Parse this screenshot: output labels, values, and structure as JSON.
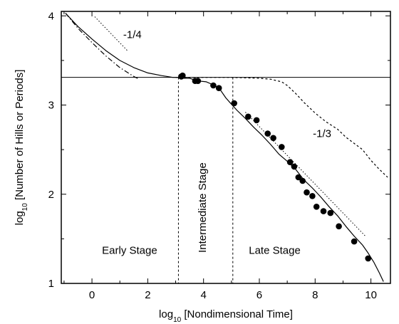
{
  "chart_data": {
    "type": "line",
    "xlabel": {
      "prefix": "log",
      "sub": "10",
      "rest": " [Nondimensional Time]"
    },
    "ylabel": {
      "prefix": "log",
      "sub": "10",
      "rest": " [Number of Hills or Periods]"
    },
    "xlim": [
      -1.1,
      10.7
    ],
    "ylim": [
      1,
      4.05
    ],
    "xticks": [
      0,
      2,
      4,
      6,
      8,
      10
    ],
    "yticks": [
      1,
      2,
      3,
      4
    ],
    "grid": false,
    "series": [
      {
        "style": "solid",
        "x": [
          -0.95,
          -0.5,
          0,
          0.5,
          1,
          1.5,
          2,
          2.5,
          2.9,
          3.1,
          3.3,
          3.5,
          3.8,
          4.1,
          4.4,
          4.6,
          4.8,
          5.0,
          5.2,
          5.5,
          5.8,
          6.1,
          6.4,
          6.7,
          7.0,
          7.3,
          7.6,
          7.9,
          8.2,
          8.5,
          8.8,
          9.1,
          9.4,
          9.7,
          9.9,
          10.1,
          10.3,
          10.45
        ],
        "y": [
          4.03,
          3.88,
          3.74,
          3.61,
          3.5,
          3.42,
          3.36,
          3.33,
          3.31,
          3.31,
          3.3,
          3.3,
          3.27,
          3.26,
          3.22,
          3.17,
          3.08,
          3.01,
          2.94,
          2.85,
          2.75,
          2.66,
          2.56,
          2.45,
          2.37,
          2.28,
          2.16,
          2.07,
          1.97,
          1.86,
          1.76,
          1.64,
          1.53,
          1.43,
          1.34,
          1.24,
          1.12,
          1.02
        ]
      },
      {
        "style": "dashdot",
        "x": [
          -0.95,
          -0.5,
          0,
          0.5,
          1.0,
          1.5,
          1.7
        ],
        "y": [
          4.03,
          3.86,
          3.7,
          3.55,
          3.42,
          3.32,
          3.29
        ]
      },
      {
        "style": "dashed",
        "x": [
          3.0,
          4.0,
          5.0,
          6.0,
          6.4,
          6.8,
          7.0,
          7.3,
          7.6,
          8.0,
          8.4,
          8.8,
          9.1,
          9.4,
          9.7,
          10.0,
          10.3,
          10.6
        ],
        "y": [
          3.31,
          3.31,
          3.31,
          3.3,
          3.29,
          3.26,
          3.22,
          3.13,
          3.03,
          2.91,
          2.81,
          2.73,
          2.64,
          2.57,
          2.5,
          2.38,
          2.28,
          2.19
        ]
      },
      {
        "style": "scatter",
        "x": [
          3.2,
          3.25,
          3.7,
          3.8,
          4.35,
          4.55,
          5.1,
          5.6,
          5.9,
          6.3,
          6.5,
          6.8,
          7.1,
          7.25,
          7.4,
          7.55,
          7.7,
          7.9,
          8.05,
          8.3,
          8.55,
          8.85,
          9.4,
          9.9
        ],
        "y": [
          3.32,
          3.33,
          3.27,
          3.27,
          3.22,
          3.19,
          3.02,
          2.87,
          2.83,
          2.68,
          2.63,
          2.53,
          2.36,
          2.31,
          2.19,
          2.15,
          2.02,
          1.98,
          1.86,
          1.81,
          1.79,
          1.64,
          1.47,
          1.28
        ]
      }
    ],
    "reference_lines": [
      {
        "style": "dotted",
        "x": [
          0.1,
          1.3
        ],
        "y": [
          3.99,
          3.6
        ]
      },
      {
        "style": "dotted",
        "x": [
          5.5,
          9.8
        ],
        "y": [
          2.92,
          1.53
        ]
      }
    ],
    "hlines": [
      {
        "y": 3.31,
        "style": "solid"
      }
    ],
    "vlines": [
      {
        "x": 3.1,
        "style": "dashed"
      },
      {
        "x": 5.05,
        "style": "dashed"
      }
    ],
    "annotations": [
      {
        "text": "-1/4",
        "x": 1.45,
        "y": 3.75
      },
      {
        "text": "-1/3",
        "x": 8.25,
        "y": 2.64
      },
      {
        "text": "Early Stage",
        "x": 1.35,
        "y": 1.33
      },
      {
        "text": "Late Stage",
        "x": 6.55,
        "y": 1.33
      }
    ],
    "rotated_annotation": {
      "text": "Intermediate Stage",
      "x": 4.08,
      "y": 1.85
    }
  }
}
